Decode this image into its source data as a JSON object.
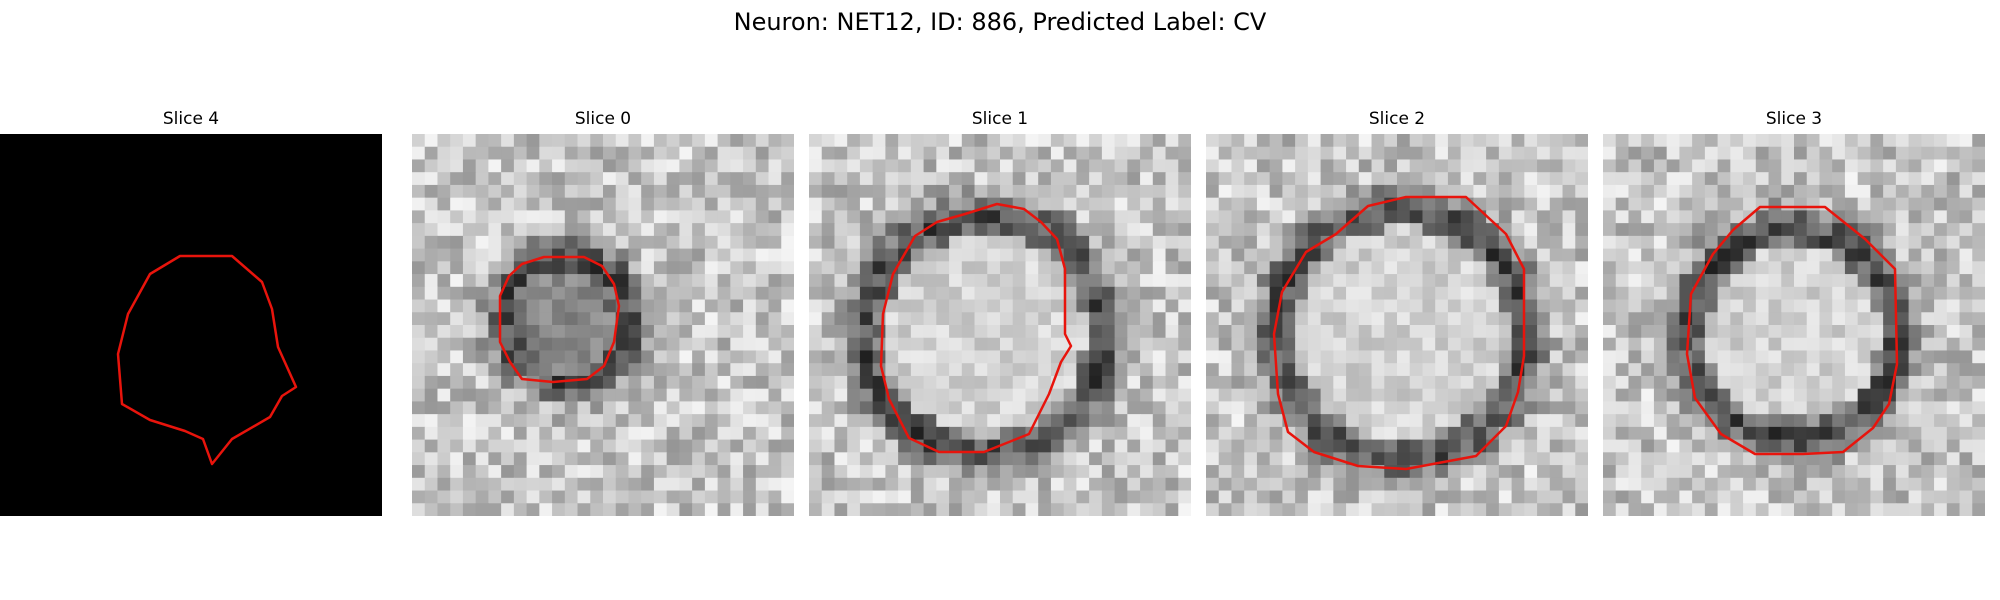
{
  "figure": {
    "title": "Neuron: NET12, ID: 886, Predicted Label: CV"
  },
  "panels": [
    {
      "label": "Slice 0"
    },
    {
      "label": "Slice 1"
    },
    {
      "label": "Slice 2"
    },
    {
      "label": "Slice 3"
    },
    {
      "label": "Slice 4"
    }
  ],
  "colors": {
    "contour": "#e8140c",
    "background": "#ffffff",
    "blank_slice": "#000000"
  }
}
